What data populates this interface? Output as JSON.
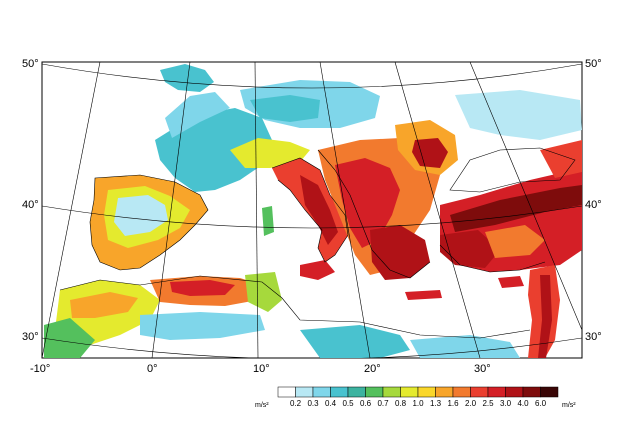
{
  "map": {
    "latitude_labels": {
      "lat50": "50°",
      "lat40": "40°",
      "lat30": "30°"
    },
    "longitude_labels": {
      "lon_m10": "-10°",
      "lon0": "0°",
      "lon10": "10°",
      "lon20": "20°",
      "lon30": "30°"
    }
  },
  "legend": {
    "unit": "m/s²",
    "breaks": [
      "0.2",
      "0.3",
      "0.4",
      "0.5",
      "0.6",
      "0.7",
      "0.8",
      "1.0",
      "1.3",
      "1.6",
      "2.0",
      "2.5",
      "3.0",
      "4.0",
      "6.0"
    ],
    "colors": [
      "#ffffff",
      "#b8e8f4",
      "#7fd6ea",
      "#49c2cf",
      "#3cb3a0",
      "#54c05d",
      "#a6d93c",
      "#e4ea2e",
      "#fad72a",
      "#f8a52a",
      "#f27a2e",
      "#ea3f2f",
      "#d41f26",
      "#b01217",
      "#7e0c0c",
      "#3a0606"
    ]
  },
  "colors": {
    "sea": "#ffffff",
    "land_base": "#ffffff",
    "graticule": "#000000",
    "coastline": "#000000"
  }
}
